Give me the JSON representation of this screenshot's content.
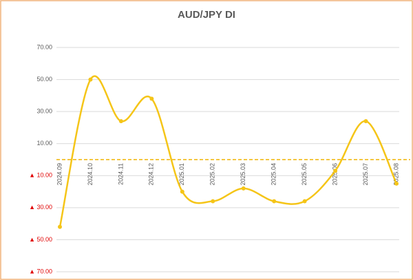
{
  "chart_data": {
    "type": "line",
    "title": "AUD/JPY  DI",
    "categories": [
      "2024.09",
      "2024.10",
      "2024.11",
      "2024.12",
      "2025.01",
      "2025.02",
      "2025.03",
      "2025.04",
      "2025.05",
      "2025.06",
      "2025.07",
      "2025.08"
    ],
    "values": [
      -42,
      50,
      24,
      38,
      -20,
      -26,
      -18,
      -26,
      -26,
      -7,
      24,
      -15
    ],
    "color": "#f5c518",
    "ylim": [
      -70,
      70
    ],
    "yticks": [
      {
        "value": 70,
        "label": "70.00"
      },
      {
        "value": 50,
        "label": "50.00"
      },
      {
        "value": 30,
        "label": "30.00"
      },
      {
        "value": 10,
        "label": "10.00"
      },
      {
        "value": -10,
        "label": "▲ 10.00"
      },
      {
        "value": -30,
        "label": "▲ 30.00"
      },
      {
        "value": -50,
        "label": "▲ 50.00"
      },
      {
        "value": -70,
        "label": "▲ 70.00"
      }
    ],
    "grid": true
  }
}
